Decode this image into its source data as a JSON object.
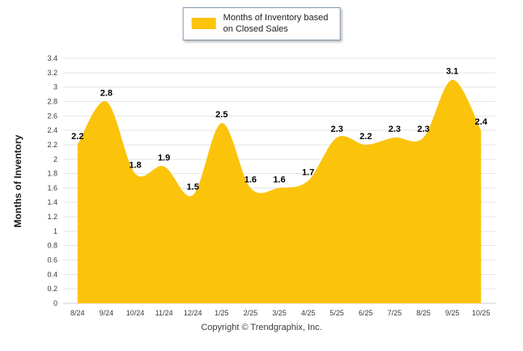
{
  "chart_data": {
    "type": "area",
    "title": "",
    "categories": [
      "8/24",
      "9/24",
      "10/24",
      "11/24",
      "12/24",
      "1/25",
      "2/25",
      "3/25",
      "4/25",
      "5/25",
      "6/25",
      "7/25",
      "8/25",
      "9/25",
      "10/25"
    ],
    "values": [
      2.2,
      2.8,
      1.8,
      1.9,
      1.5,
      2.5,
      1.6,
      1.6,
      1.7,
      2.3,
      2.2,
      2.3,
      2.3,
      3.1,
      2.4
    ],
    "xlabel": "",
    "ylabel": "Months of Inventory",
    "ylim": [
      0,
      3.4
    ],
    "ytick_step": 0.2,
    "ytick_labels": [
      "0",
      "0.2",
      "0.4",
      "0.6",
      "0.8",
      "1",
      "1.2",
      "1.4",
      "1.6",
      "1.8",
      "2",
      "2.2",
      "2.4",
      "2.6",
      "2.8",
      "3",
      "3.2",
      "3.4"
    ],
    "grid": "horizontal",
    "data_labels": true,
    "series_color": "#FCC30B",
    "legend": {
      "position": "top",
      "lines": [
        "Months of Inventory based",
        "on Closed Sales"
      ]
    }
  },
  "footer": {
    "copyright": "Copyright © Trendgraphix, Inc."
  }
}
